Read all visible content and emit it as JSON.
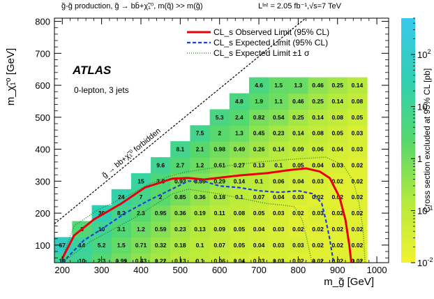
{
  "chart_data": {
    "type": "heatmap",
    "header_text": "g̃-g̃  production, g̃ → bb̄+χ̃₁⁰, m(q̃) >> m(g̃)",
    "lumi_text": "Lᴵⁿᵗ = 2.05 fb⁻¹,√s=7 TeV",
    "experiment_label": "ATLAS",
    "selection_label": "0-lepton, 3 jets",
    "forbidden_label": "g̃ → bb+χ̃₁⁰  forbidden",
    "xlabel": "m_g̃ [GeV]",
    "ylabel": "m_χ̃₁⁰ [GeV]",
    "zlabel": "Cross section excluded at 95% CL [pb]",
    "xlim": [
      180,
      1030
    ],
    "ylim": [
      45,
      810
    ],
    "zlim": [
      0.01,
      500
    ],
    "x_ticks": [
      200,
      300,
      400,
      500,
      600,
      700,
      800,
      900,
      1000
    ],
    "x_tick_labels": [
      "200",
      "300",
      "400",
      "500",
      "600",
      "700",
      "800",
      "900",
      "1000"
    ],
    "y_ticks": [
      100,
      200,
      300,
      400,
      500,
      600,
      700,
      800
    ],
    "y_tick_labels": [
      "100",
      "200",
      "300",
      "400",
      "500",
      "600",
      "700",
      "800"
    ],
    "z_ticks": [
      {
        "value": 100,
        "base": "10",
        "exp": "2"
      },
      {
        "value": 10,
        "base": "10",
        "exp": ""
      },
      {
        "value": 1,
        "base": "1",
        "exp": ""
      },
      {
        "value": 0.1,
        "base": "10",
        "exp": "-1"
      },
      {
        "value": 0.01,
        "base": "10",
        "exp": "-2"
      }
    ],
    "legend": [
      {
        "label": "CL_s Observed Limit (95% CL)",
        "color": "#e8000b",
        "style": "solid"
      },
      {
        "label": "CL_s Expected Limit (95% CL)",
        "color": "#1f3fd9",
        "style": "dashed"
      },
      {
        "label": "CL_s Expected Limit ±1 σ",
        "color": "#2a7a16",
        "style": "dotted"
      }
    ],
    "colormap": [
      "#f2f230",
      "#b4ea3c",
      "#55d86e",
      "#2fcfb2",
      "#38c9ee"
    ],
    "cells": [
      {
        "x": 200,
        "rows": [
          [
            50,
            "10"
          ],
          [
            100,
            "67"
          ]
        ]
      },
      {
        "x": 250,
        "rows": [
          [
            50,
            "10"
          ],
          [
            100,
            "14"
          ],
          [
            150,
            "3"
          ]
        ]
      },
      {
        "x": 300,
        "rows": [
          [
            50,
            "2.3"
          ],
          [
            100,
            "5.2"
          ],
          [
            150,
            "10"
          ],
          [
            200,
            "30"
          ]
        ]
      },
      {
        "x": 350,
        "rows": [
          [
            50,
            "0.99"
          ],
          [
            100,
            "1.5"
          ],
          [
            150,
            "3.1"
          ],
          [
            200,
            "8.2"
          ],
          [
            250,
            "24"
          ]
        ]
      },
      {
        "x": 400,
        "rows": [
          [
            50,
            "0.43"
          ],
          [
            100,
            "0.71"
          ],
          [
            150,
            "1.2"
          ],
          [
            200,
            "2.3"
          ],
          [
            250,
            "7"
          ],
          [
            300,
            "15"
          ]
        ]
      },
      {
        "x": 450,
        "rows": [
          [
            50,
            "0.22"
          ],
          [
            100,
            "0.32"
          ],
          [
            150,
            "0.59"
          ],
          [
            200,
            "0.95"
          ],
          [
            250,
            "2"
          ],
          [
            300,
            "3.8"
          ],
          [
            350,
            "9.6"
          ]
        ]
      },
      {
        "x": 500,
        "rows": [
          [
            50,
            "0.13"
          ],
          [
            100,
            "0.18"
          ],
          [
            150,
            "0.23"
          ],
          [
            200,
            "0.36"
          ],
          [
            250,
            "0.85"
          ],
          [
            300,
            "0.93"
          ],
          [
            350,
            "2.7"
          ],
          [
            400,
            "8.1"
          ]
        ]
      },
      {
        "x": 550,
        "rows": [
          [
            50,
            "0.1"
          ],
          [
            100,
            "0.1"
          ],
          [
            150,
            "0.13"
          ],
          [
            200,
            "0.19"
          ],
          [
            250,
            "0.36"
          ],
          [
            300,
            "0.59"
          ],
          [
            350,
            "1.2"
          ],
          [
            400,
            "2.1"
          ],
          [
            450,
            "7.5"
          ]
        ]
      },
      {
        "x": 600,
        "rows": [
          [
            50,
            "0.06"
          ],
          [
            100,
            "0.07"
          ],
          [
            150,
            "0.09"
          ],
          [
            200,
            "0.11"
          ],
          [
            250,
            "0.18"
          ],
          [
            300,
            "0.29"
          ],
          [
            350,
            "0.61"
          ],
          [
            400,
            "0.98"
          ],
          [
            450,
            "2"
          ],
          [
            500,
            "5.3"
          ]
        ]
      },
      {
        "x": 650,
        "rows": [
          [
            50,
            "0.04"
          ],
          [
            100,
            "0.05"
          ],
          [
            150,
            "0.05"
          ],
          [
            200,
            "0.08"
          ],
          [
            250,
            "0.1"
          ],
          [
            300,
            "0.14"
          ],
          [
            350,
            "0.27"
          ],
          [
            400,
            "0.49"
          ],
          [
            450,
            "1.3"
          ],
          [
            500,
            "2.4"
          ],
          [
            550,
            "4.8"
          ]
        ]
      },
      {
        "x": 700,
        "rows": [
          [
            50,
            "0.03"
          ],
          [
            100,
            "0.04"
          ],
          [
            150,
            "0.04"
          ],
          [
            200,
            "0.05"
          ],
          [
            250,
            "0.07"
          ],
          [
            300,
            "0.1"
          ],
          [
            350,
            "0.13"
          ],
          [
            400,
            "0.26"
          ],
          [
            450,
            "0.45"
          ],
          [
            500,
            "0.82"
          ],
          [
            550,
            "1.9"
          ],
          [
            600,
            "4.6"
          ]
        ]
      },
      {
        "x": 750,
        "rows": [
          [
            50,
            "0.03"
          ],
          [
            100,
            "0.03"
          ],
          [
            150,
            "0.03"
          ],
          [
            200,
            "0.03"
          ],
          [
            250,
            "0.04"
          ],
          [
            300,
            "0.06"
          ],
          [
            350,
            "0.1"
          ],
          [
            400,
            "0.14"
          ],
          [
            450,
            "0.23"
          ],
          [
            500,
            "0.54"
          ],
          [
            550,
            "1.1"
          ],
          [
            600,
            "1.5"
          ]
        ]
      },
      {
        "x": 800,
        "rows": [
          [
            50,
            "0.02"
          ],
          [
            100,
            "0.03"
          ],
          [
            150,
            "0.02"
          ],
          [
            200,
            "0.02"
          ],
          [
            250,
            "0.03"
          ],
          [
            300,
            "0.04"
          ],
          [
            350,
            "0.05"
          ],
          [
            400,
            "0.09"
          ],
          [
            450,
            "0.14"
          ],
          [
            500,
            "0.25"
          ],
          [
            550,
            "0.46"
          ],
          [
            600,
            "1.3"
          ]
        ]
      },
      {
        "x": 850,
        "rows": [
          [
            50,
            "0.02"
          ],
          [
            100,
            "0.02"
          ],
          [
            150,
            "0.02"
          ],
          [
            200,
            "0.03"
          ],
          [
            250,
            "0.02"
          ],
          [
            300,
            "0.03"
          ],
          [
            350,
            "0.04"
          ],
          [
            400,
            "0.06"
          ],
          [
            450,
            "0.08"
          ],
          [
            500,
            "0.14"
          ],
          [
            550,
            "0.25"
          ],
          [
            600,
            "0.46"
          ]
        ]
      },
      {
        "x": 900,
        "rows": [
          [
            50,
            "0.02"
          ],
          [
            100,
            "0.02"
          ],
          [
            150,
            "0.02"
          ],
          [
            200,
            "0.02"
          ],
          [
            250,
            "0.02"
          ],
          [
            300,
            "0.02"
          ],
          [
            350,
            "0.03"
          ],
          [
            400,
            "0.04"
          ],
          [
            450,
            "0.05"
          ],
          [
            500,
            "0.08"
          ],
          [
            550,
            "0.14"
          ],
          [
            600,
            "0.25"
          ]
        ]
      },
      {
        "x": 950,
        "rows": [
          [
            50,
            "0.02"
          ],
          [
            100,
            "0.02"
          ],
          [
            150,
            "0.02"
          ],
          [
            200,
            "0.02"
          ],
          [
            250,
            "0.02"
          ],
          [
            300,
            "0.02"
          ],
          [
            350,
            "0.02"
          ],
          [
            400,
            "0.03"
          ],
          [
            450,
            "0.03"
          ],
          [
            500,
            "0.05"
          ],
          [
            550,
            "0.08"
          ],
          [
            600,
            "0.14"
          ]
        ]
      }
    ],
    "observed_limit": [
      [
        200,
        58
      ],
      [
        230,
        130
      ],
      [
        280,
        180
      ],
      [
        350,
        230
      ],
      [
        410,
        280
      ],
      [
        480,
        308
      ],
      [
        520,
        310
      ],
      [
        560,
        305
      ],
      [
        650,
        318
      ],
      [
        720,
        325
      ],
      [
        780,
        335
      ],
      [
        820,
        340
      ],
      [
        855,
        330
      ],
      [
        880,
        310
      ],
      [
        905,
        250
      ],
      [
        920,
        180
      ],
      [
        930,
        100
      ],
      [
        935,
        45
      ]
    ],
    "expected_limit": [
      [
        200,
        45
      ],
      [
        255,
        115
      ],
      [
        300,
        150
      ],
      [
        360,
        200
      ],
      [
        420,
        240
      ],
      [
        470,
        270
      ],
      [
        520,
        300
      ],
      [
        560,
        300
      ],
      [
        600,
        285
      ],
      [
        650,
        280
      ],
      [
        700,
        270
      ],
      [
        750,
        265
      ],
      [
        800,
        270
      ],
      [
        840,
        260
      ],
      [
        860,
        230
      ],
      [
        870,
        180
      ],
      [
        880,
        120
      ],
      [
        890,
        45
      ]
    ],
    "expected_minus_1sigma": [
      [
        200,
        45
      ],
      [
        270,
        110
      ],
      [
        330,
        150
      ],
      [
        390,
        190
      ],
      [
        440,
        230
      ],
      [
        480,
        260
      ],
      [
        520,
        275
      ],
      [
        600,
        260
      ],
      [
        660,
        245
      ],
      [
        720,
        230
      ],
      [
        760,
        225
      ],
      [
        790,
        220
      ],
      [
        810,
        180
      ],
      [
        820,
        130
      ],
      [
        835,
        45
      ]
    ],
    "expected_plus_1sigma": [
      [
        200,
        60
      ],
      [
        230,
        160
      ],
      [
        290,
        210
      ],
      [
        360,
        250
      ],
      [
        420,
        290
      ],
      [
        470,
        315
      ],
      [
        520,
        330
      ],
      [
        600,
        345
      ],
      [
        700,
        360
      ],
      [
        800,
        370
      ],
      [
        870,
        375
      ],
      [
        915,
        350
      ],
      [
        940,
        300
      ],
      [
        955,
        230
      ],
      [
        965,
        150
      ],
      [
        970,
        45
      ]
    ]
  }
}
